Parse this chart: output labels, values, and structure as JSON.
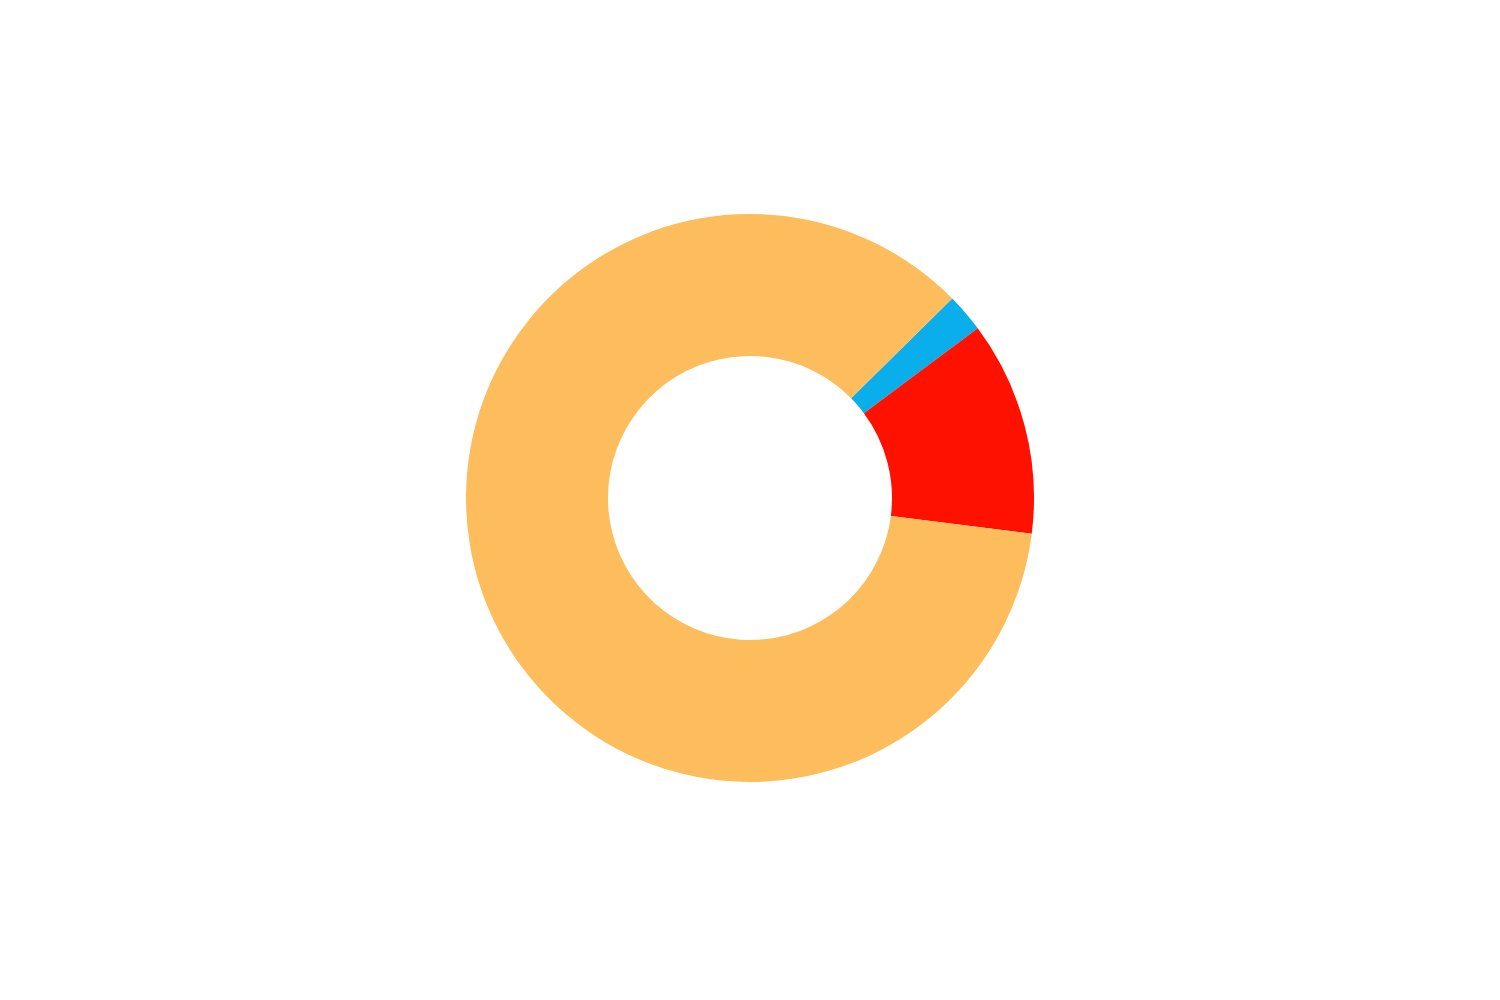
{
  "chart_data": {
    "type": "donut",
    "categories": [
      null,
      null,
      null
    ],
    "values": [
      2.2,
      12.2,
      85.6
    ],
    "colors": [
      "#0aaeea",
      "#ff1100",
      "#febd5c"
    ]
  }
}
